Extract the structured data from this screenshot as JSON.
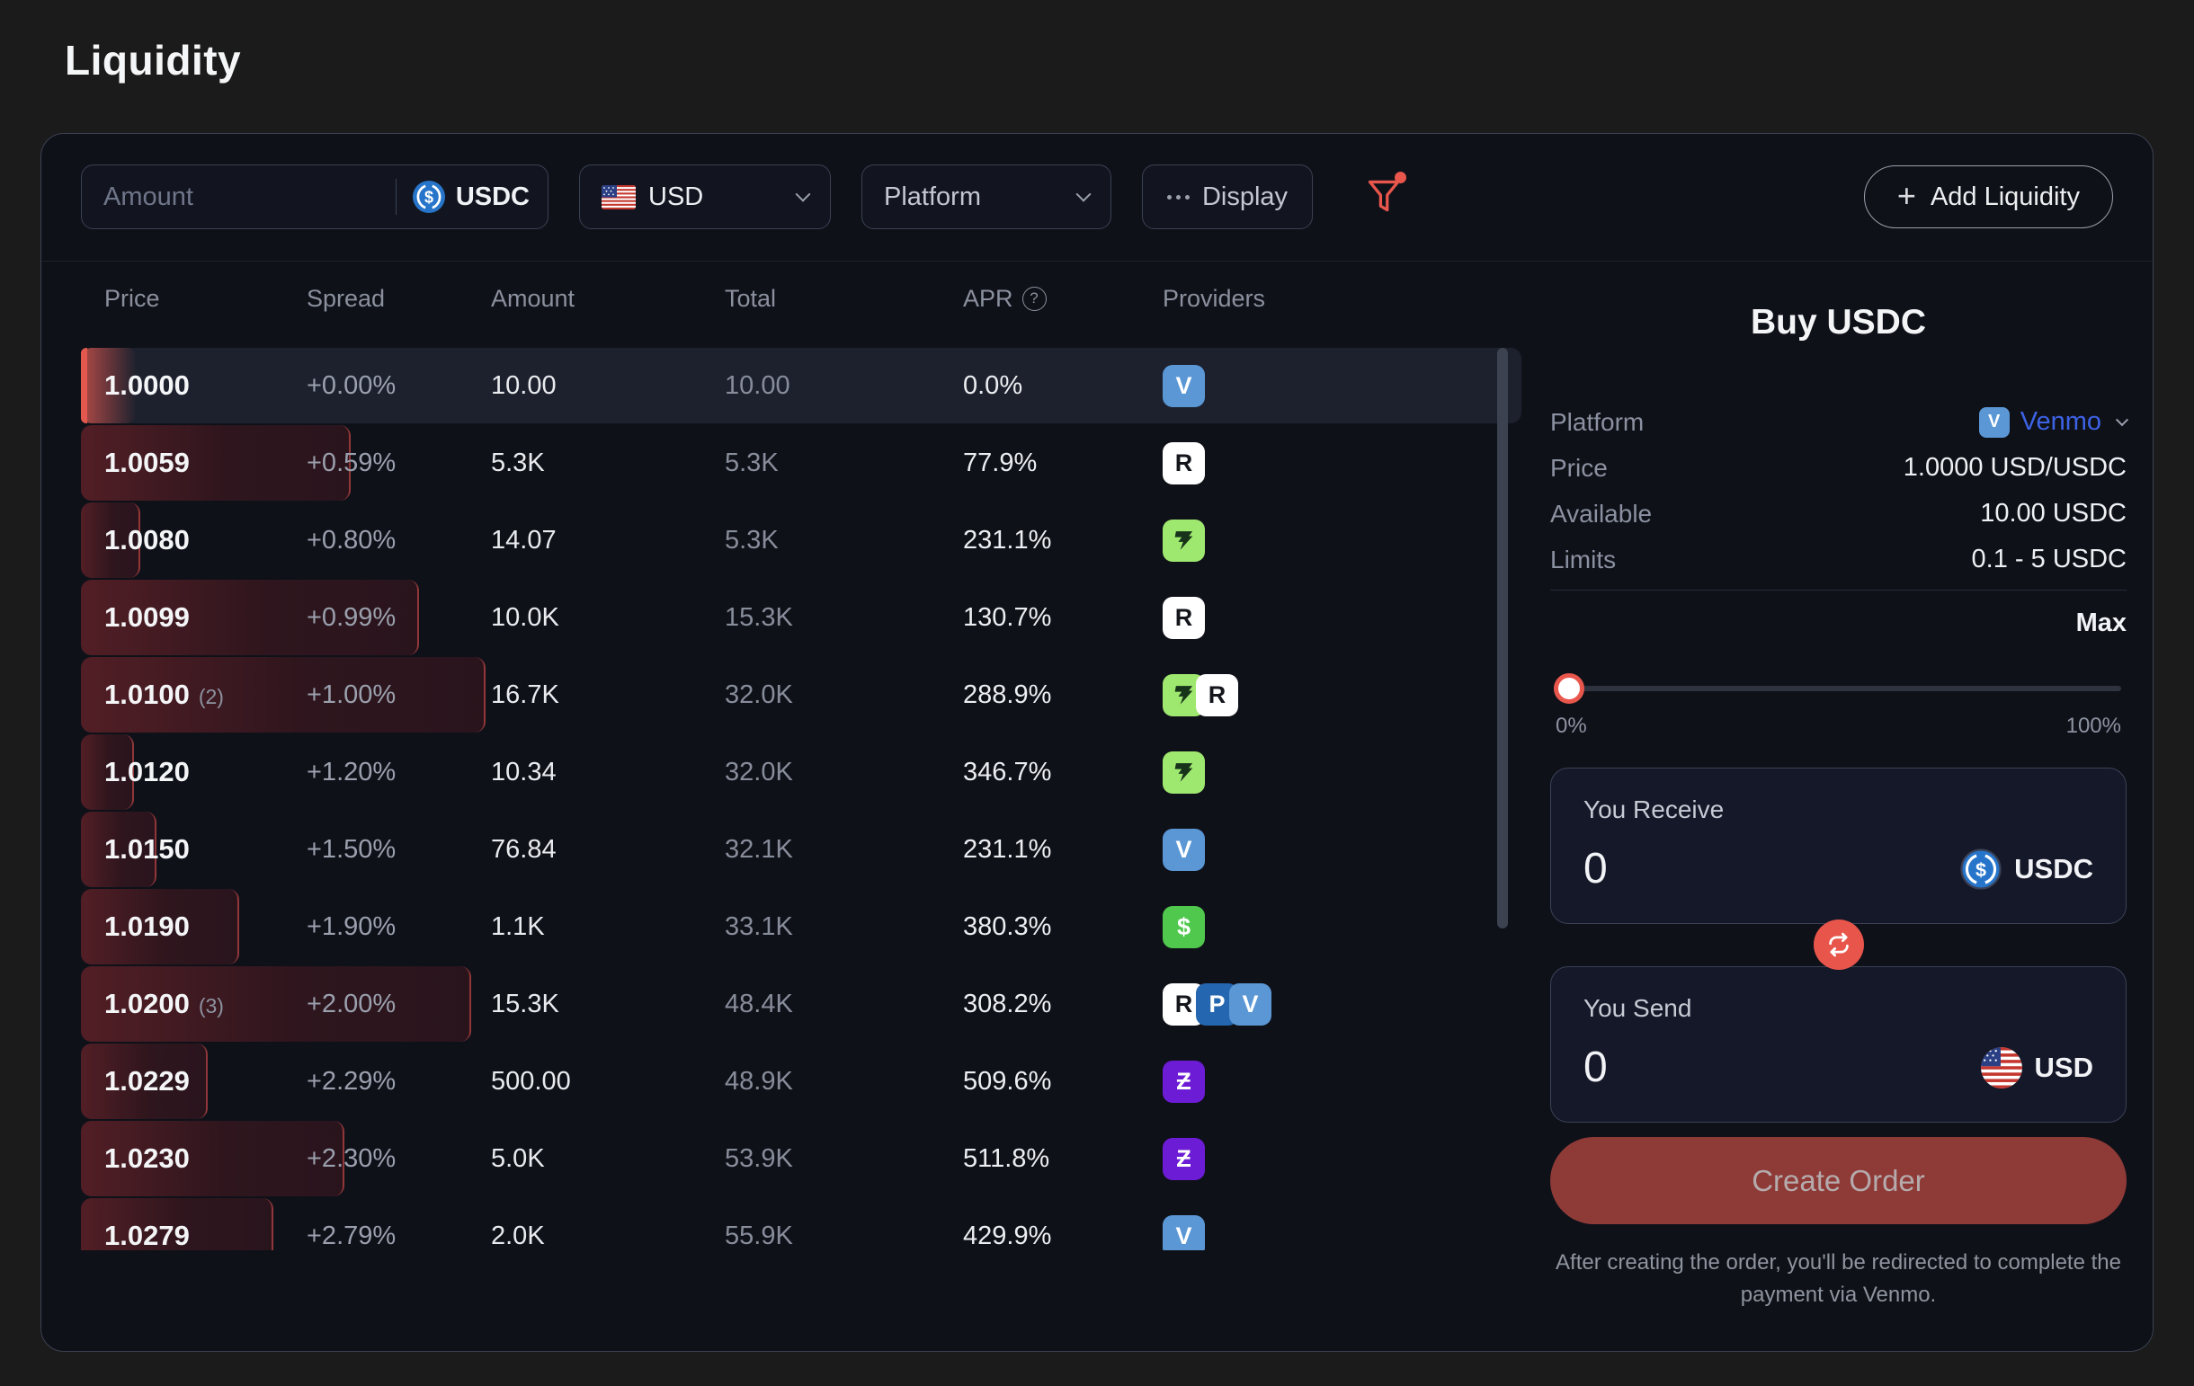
{
  "page": {
    "title": "Liquidity"
  },
  "toolbar": {
    "amount_placeholder": "Amount",
    "amount_value": "",
    "token": "USDC",
    "currency": "USD",
    "platform_label": "Platform",
    "display_label": "Display",
    "add_liquidity_label": "Add Liquidity"
  },
  "table": {
    "headers": {
      "price": "Price",
      "spread": "Spread",
      "amount": "Amount",
      "total": "Total",
      "apr": "APR",
      "providers": "Providers"
    },
    "rows": [
      {
        "price": "1.0000",
        "count": "",
        "spread": "+0.00%",
        "amount": "10.00",
        "total": "10.00",
        "apr": "0.0%",
        "providers": [
          "venmo"
        ],
        "depth": 62,
        "selected": true
      },
      {
        "price": "1.0059",
        "count": "",
        "spread": "+0.59%",
        "amount": "5.3K",
        "total": "5.3K",
        "apr": "77.9%",
        "providers": [
          "revolut"
        ],
        "depth": 300
      },
      {
        "price": "1.0080",
        "count": "",
        "spread": "+0.80%",
        "amount": "14.07",
        "total": "5.3K",
        "apr": "231.1%",
        "providers": [
          "wise"
        ],
        "depth": 66
      },
      {
        "price": "1.0099",
        "count": "",
        "spread": "+0.99%",
        "amount": "10.0K",
        "total": "15.3K",
        "apr": "130.7%",
        "providers": [
          "revolut"
        ],
        "depth": 376
      },
      {
        "price": "1.0100",
        "count": "(2)",
        "spread": "+1.00%",
        "amount": "16.7K",
        "total": "32.0K",
        "apr": "288.9%",
        "providers": [
          "wise",
          "revolut"
        ],
        "depth": 450
      },
      {
        "price": "1.0120",
        "count": "",
        "spread": "+1.20%",
        "amount": "10.34",
        "total": "32.0K",
        "apr": "346.7%",
        "providers": [
          "wise"
        ],
        "depth": 59
      },
      {
        "price": "1.0150",
        "count": "",
        "spread": "+1.50%",
        "amount": "76.84",
        "total": "32.1K",
        "apr": "231.1%",
        "providers": [
          "venmo"
        ],
        "depth": 84
      },
      {
        "price": "1.0190",
        "count": "",
        "spread": "+1.90%",
        "amount": "1.1K",
        "total": "33.1K",
        "apr": "380.3%",
        "providers": [
          "cashapp"
        ],
        "depth": 176
      },
      {
        "price": "1.0200",
        "count": "(3)",
        "spread": "+2.00%",
        "amount": "15.3K",
        "total": "48.4K",
        "apr": "308.2%",
        "providers": [
          "revolut",
          "paypal",
          "venmo"
        ],
        "depth": 434
      },
      {
        "price": "1.0229",
        "count": "",
        "spread": "+2.29%",
        "amount": "500.00",
        "total": "48.9K",
        "apr": "509.6%",
        "providers": [
          "zelle"
        ],
        "depth": 141
      },
      {
        "price": "1.0230",
        "count": "",
        "spread": "+2.30%",
        "amount": "5.0K",
        "total": "53.9K",
        "apr": "511.8%",
        "providers": [
          "zelle"
        ],
        "depth": 293
      },
      {
        "price": "1.0279",
        "count": "",
        "spread": "+2.79%",
        "amount": "2.0K",
        "total": "55.9K",
        "apr": "429.9%",
        "providers": [
          "venmo"
        ],
        "depth": 214
      }
    ]
  },
  "providers": {
    "venmo": {
      "name": "Venmo",
      "glyph": "V",
      "bg": "#5b97d5",
      "fg": "#ffffff"
    },
    "revolut": {
      "name": "Revolut",
      "glyph": "R",
      "bg": "#ffffff",
      "fg": "#14161c"
    },
    "wise": {
      "name": "Wise",
      "glyph": "",
      "bg": "#9fe870",
      "fg": "#17331a"
    },
    "cashapp": {
      "name": "Cash App",
      "glyph": "$",
      "bg": "#50c84e",
      "fg": "#ffffff"
    },
    "zelle": {
      "name": "Zelle",
      "glyph": "Ƶ",
      "bg": "#6d1cd6",
      "fg": "#ffffff"
    },
    "paypal": {
      "name": "PayPal",
      "glyph": "P",
      "bg": "#2566b0",
      "fg": "#ffffff"
    }
  },
  "panel": {
    "title": "Buy USDC",
    "platform_label": "Platform",
    "platform_value": "Venmo",
    "platform_icon_glyph": "V",
    "price_label": "Price",
    "price_value": "1.0000 USD/USDC",
    "available_label": "Available",
    "available_value": "10.00 USDC",
    "limits_label": "Limits",
    "limits_value": "0.1 - 5 USDC",
    "max_label": "Max",
    "slider_value_pct": 0,
    "slider_min_label": "0%",
    "slider_max_label": "100%",
    "receive_label": "You Receive",
    "receive_value": "0",
    "receive_currency": "USDC",
    "send_label": "You Send",
    "send_value": "0",
    "send_currency": "USD",
    "create_order_label": "Create Order",
    "footer": "After creating the order, you'll be redirected to complete the payment via Venmo."
  },
  "colors": {
    "accent_red": "#e8564c",
    "depth_bar_red": "#682632",
    "venmo_blue": "#5b97d5",
    "paypal_blue": "#2566b0",
    "wise_green": "#9fe870",
    "cashapp_green": "#50c84e",
    "zelle_purple": "#6d1cd6",
    "usdc_blue": "#2775ca",
    "link_blue": "#3c63e6",
    "card_bg": "#0f1119",
    "page_bg": "#1b1b1b",
    "create_order_bg": "#8e3a37",
    "selected_row_bg": "#1d212e"
  }
}
